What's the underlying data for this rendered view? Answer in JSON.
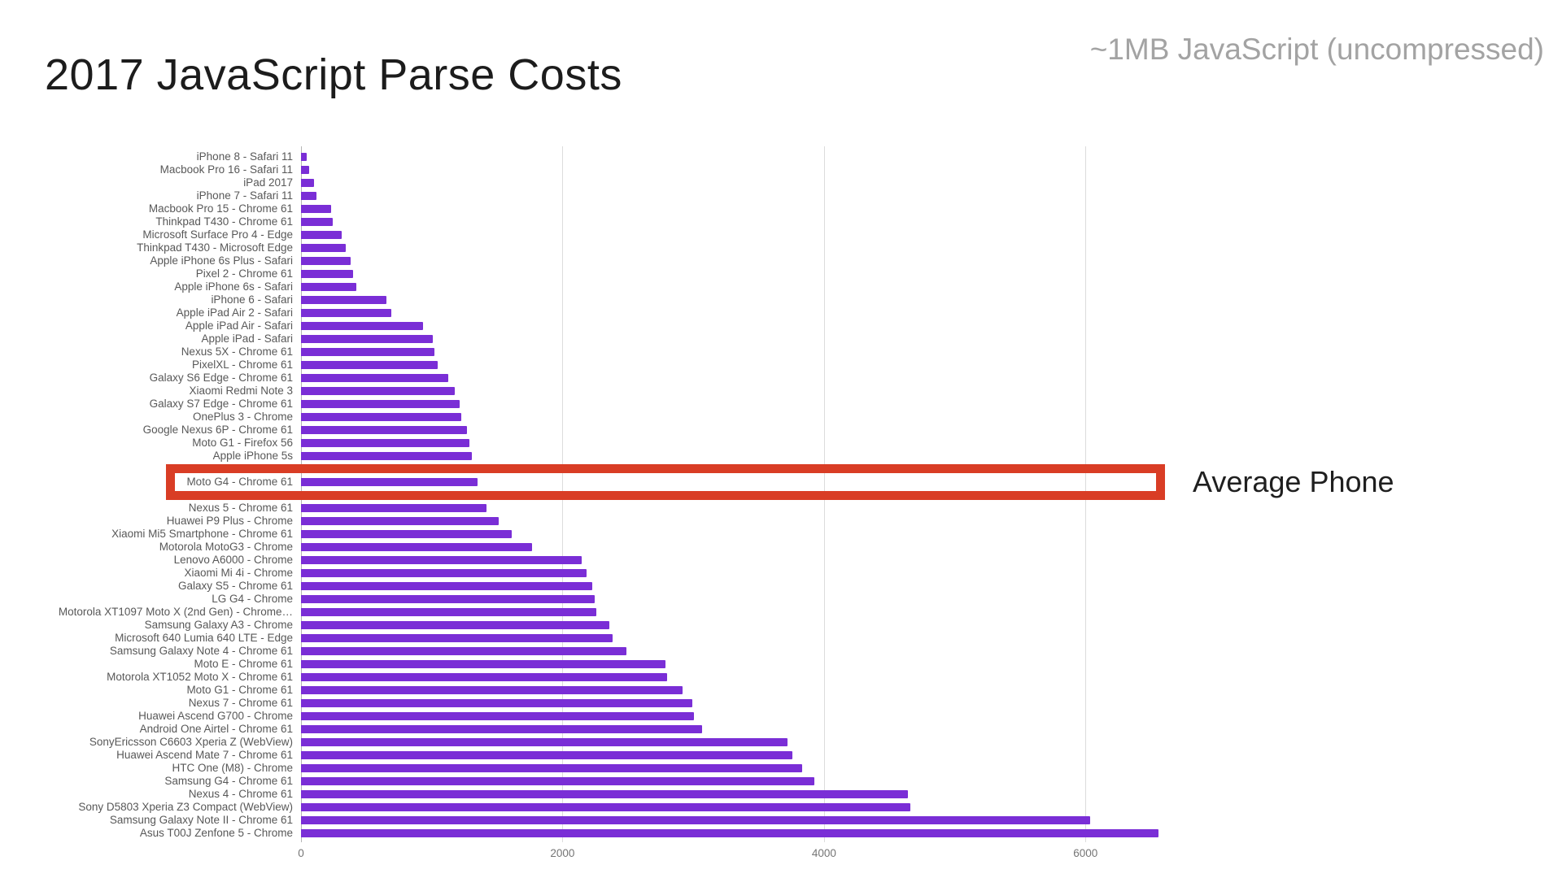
{
  "header": {
    "title": "2017 JavaScript Parse Costs",
    "subtitle": "~1MB JavaScript (uncompressed)"
  },
  "annotation": {
    "label": "Average Phone",
    "highlighted_category": "Moto G4 - Chrome 61",
    "box_color": "#d93d25"
  },
  "chart_data": {
    "type": "bar",
    "orientation": "horizontal",
    "title": "2017 JavaScript Parse Costs",
    "subtitle": "~1MB JavaScript (uncompressed)",
    "unit": "ms",
    "bar_color": "#7a2ed6",
    "grid": true,
    "x_ticks": [
      0,
      2000,
      4000,
      6000
    ],
    "xlim": [
      0,
      6720
    ],
    "categories": [
      "iPhone 8 - Safari 11",
      "Macbook Pro 16 - Safari 11",
      "iPad 2017",
      "iPhone 7 - Safari 11",
      "Macbook Pro 15 - Chrome 61",
      "Thinkpad T430 - Chrome 61",
      "Microsoft Surface Pro 4 - Edge",
      "Thinkpad T430 - Microsoft Edge",
      "Apple iPhone 6s Plus - Safari",
      "Pixel 2 - Chrome 61",
      "Apple iPhone 6s - Safari",
      "iPhone 6 - Safari",
      "Apple iPad Air 2 - Safari",
      "Apple iPad Air - Safari",
      "Apple iPad - Safari",
      "Nexus 5X - Chrome 61",
      "PixelXL - Chrome 61",
      "Galaxy S6 Edge - Chrome 61",
      "Xiaomi Redmi Note 3",
      "Galaxy S7 Edge - Chrome 61",
      "OnePlus 3 - Chrome",
      "Google Nexus 6P - Chrome 61",
      "Moto G1 - Firefox 56",
      "Apple iPhone 5s",
      "",
      "Moto G4 - Chrome 61",
      "",
      "Nexus 5 - Chrome 61",
      "Huawei P9 Plus - Chrome",
      "Xiaomi Mi5 Smartphone - Chrome 61",
      "Motorola MotoG3 - Chrome",
      "Lenovo A6000 - Chrome",
      "Xiaomi Mi 4i - Chrome",
      "Galaxy S5 - Chrome 61",
      "LG G4 - Chrome",
      "Motorola XT1097 Moto X (2nd Gen) - Chrome…",
      "Samsung Galaxy A3 - Chrome",
      "Microsoft 640 Lumia 640 LTE - Edge",
      "Samsung Galaxy Note 4 - Chrome 61",
      "Moto E - Chrome 61",
      "Motorola XT1052 Moto X - Chrome 61",
      "Moto G1 - Chrome 61",
      "Nexus 7 - Chrome 61",
      "Huawei Ascend G700 - Chrome",
      "Android One Airtel - Chrome 61",
      "SonyEricsson C6603 Xperia Z (WebView)",
      "Huawei Ascend Mate 7 - Chrome 61",
      "HTC One (M8) - Chrome",
      "Samsung G4 - Chrome 61",
      "Nexus 4 - Chrome 61",
      "Sony D5803 Xperia Z3 Compact (WebView)",
      "Samsung Galaxy Note II - Chrome 61",
      "Asus T00J Zenfone 5 - Chrome"
    ],
    "values": [
      45,
      60,
      100,
      115,
      230,
      245,
      310,
      345,
      380,
      400,
      420,
      650,
      690,
      935,
      1010,
      1020,
      1045,
      1125,
      1175,
      1210,
      1225,
      1270,
      1290,
      1305,
      1325,
      1350,
      1400,
      1420,
      1510,
      1610,
      1765,
      2145,
      2185,
      2225,
      2245,
      2260,
      2360,
      2380,
      2490,
      2785,
      2800,
      2915,
      2990,
      3005,
      3065,
      3720,
      3760,
      3835,
      3925,
      4640,
      4660,
      6035,
      6555
    ]
  }
}
